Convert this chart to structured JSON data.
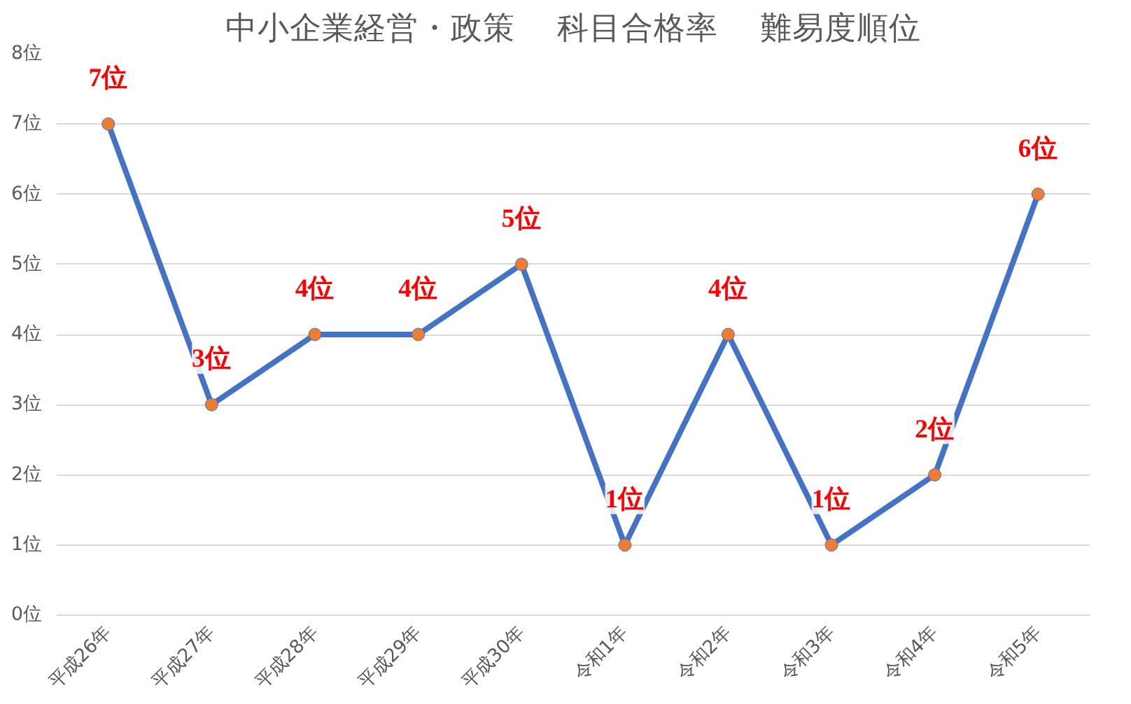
{
  "chart_data": {
    "type": "line",
    "title": "中小企業経営・政策　 科目合格率　 難易度順位",
    "categories": [
      "平成26年",
      "平成27年",
      "平成28年",
      "平成29年",
      "平成30年",
      "令和1年",
      "令和2年",
      "令和3年",
      "令和4年",
      "令和5年"
    ],
    "series": [
      {
        "color": "#4472c4",
        "values": [
          7,
          3,
          4,
          4,
          5,
          1,
          4,
          1,
          2,
          6
        ],
        "value_labels": [
          "7位",
          "3位",
          "4位",
          "4位",
          "5位",
          "1位",
          "4位",
          "1位",
          "2位",
          "6位"
        ]
      }
    ],
    "ylim": [
      0,
      8
    ],
    "yticks": [
      {
        "value": 0,
        "label": "0位"
      },
      {
        "value": 1,
        "label": "1位"
      },
      {
        "value": 2,
        "label": "2位"
      },
      {
        "value": 3,
        "label": "3位"
      },
      {
        "value": 4,
        "label": "4位"
      },
      {
        "value": 5,
        "label": "5位"
      },
      {
        "value": 6,
        "label": "6位"
      },
      {
        "value": 7,
        "label": "7位"
      },
      {
        "value": 8,
        "label": "8位"
      }
    ],
    "grid": "y",
    "marker": "circle",
    "line_style": "solid"
  }
}
